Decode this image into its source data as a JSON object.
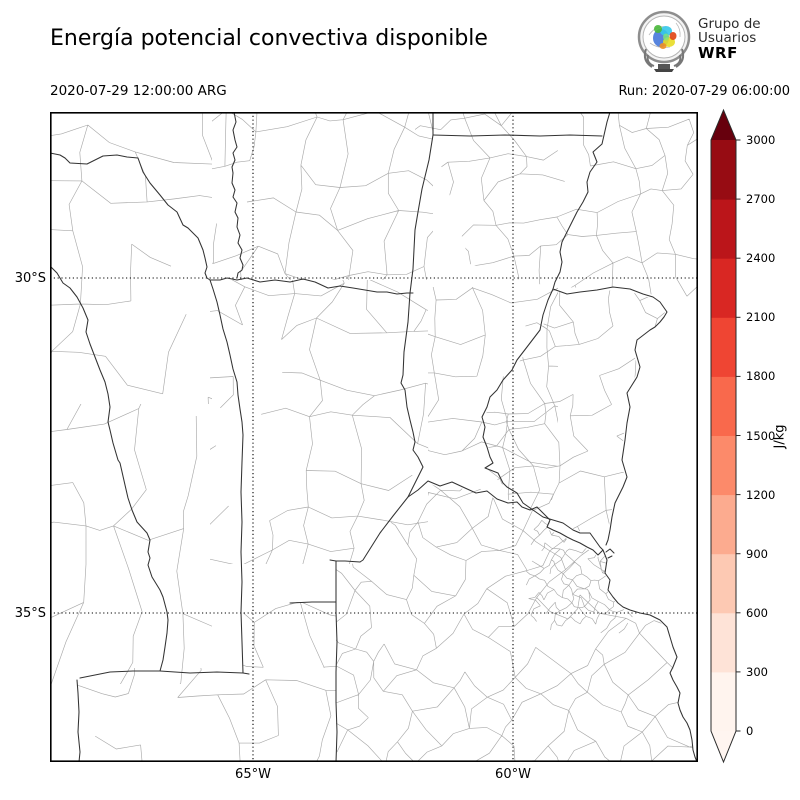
{
  "header": {
    "title": "Energía potencial convectiva disponible",
    "valid_time": "2020-07-29 12:00:00 ARG",
    "run_label": "Run: 2020-07-29 06:00:00",
    "logo": {
      "line1": "Grupo de",
      "line2": "Usuarios",
      "line3": "WRF"
    }
  },
  "axes": {
    "lat_labels": [
      "30°S",
      "35°S"
    ],
    "lon_labels": [
      "65°W",
      "60°W"
    ]
  },
  "colorbar": {
    "unit": "J/kg",
    "ticks": [
      "0",
      "300",
      "600",
      "900",
      "1200",
      "1500",
      "1800",
      "2100",
      "2400",
      "2700",
      "3000"
    ],
    "segment_colors": [
      "#fff4ee",
      "#fee3d7",
      "#fdc9b3",
      "#fcab8f",
      "#fc8a6a",
      "#f9694c",
      "#ef4533",
      "#d92723",
      "#bb151a",
      "#970c13"
    ],
    "under_color": "#fff5f0",
    "over_color": "#67000d"
  },
  "map_meta": {
    "field_note": "no CAPE shading visible (field at/below 0 everywhere in domain)"
  }
}
